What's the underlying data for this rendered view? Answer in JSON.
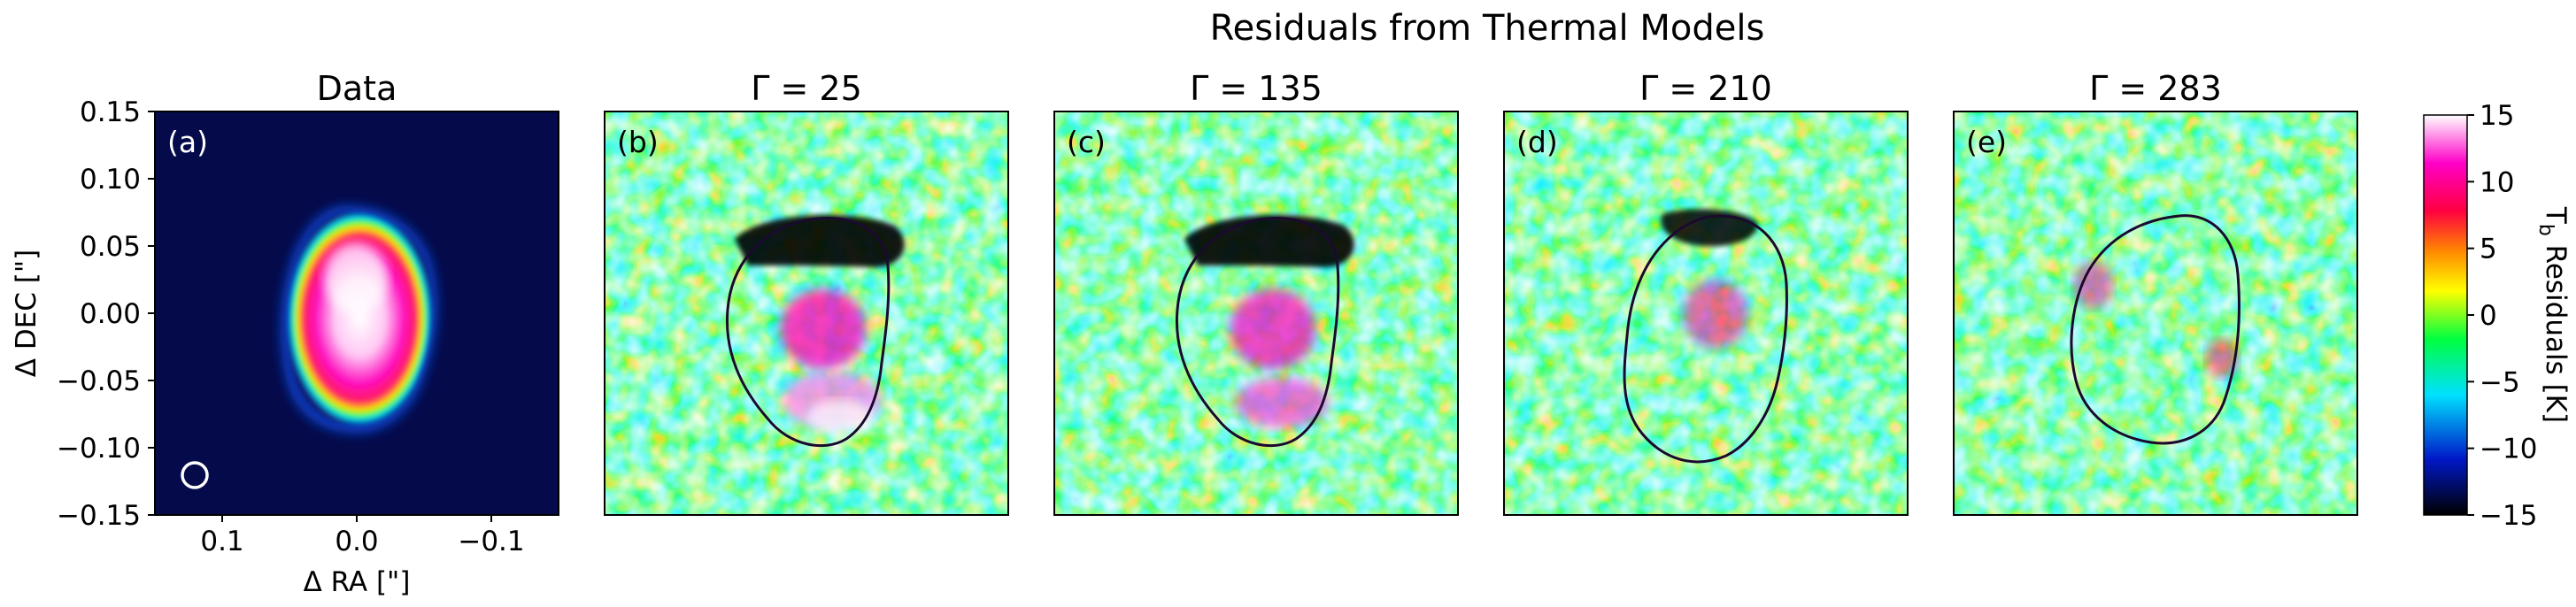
{
  "figure": {
    "suptitle": "Residuals from Thermal Models"
  },
  "panels": [
    {
      "title": "Data",
      "label": "(a)"
    },
    {
      "title": "Γ = 25",
      "label": "(b)"
    },
    {
      "title": "Γ = 135",
      "label": "(c)"
    },
    {
      "title": "Γ = 210",
      "label": "(d)"
    },
    {
      "title": "Γ = 283",
      "label": "(e)"
    }
  ],
  "axes": {
    "xlabel": "Δ RA [\"]",
    "ylabel": "Δ DEC [\"]",
    "xticks": [
      "0.1",
      "0.0",
      "−0.1"
    ],
    "yticks": [
      "0.15",
      "0.10",
      "0.05",
      "0.00",
      "−0.05",
      "−0.10",
      "−0.15"
    ]
  },
  "colorbar": {
    "label": "T_b Residuals [K]",
    "label_main": "T",
    "label_sub": "b",
    "label_rest": " Residuals [K]",
    "ticks": [
      "15",
      "10",
      "5",
      "0",
      "−5",
      "−10",
      "−15"
    ],
    "colors": [
      "#000000",
      "#0018c8",
      "#00e0ff",
      "#00ff40",
      "#ffff00",
      "#ff8800",
      "#ff0040",
      "#ff00c8",
      "#ffffff"
    ]
  },
  "chart_data": [
    {
      "type": "heatmap",
      "title": "Data",
      "xlabel": "Δ RA [\"]",
      "ylabel": "Δ DEC [\"]",
      "xlim": [
        0.15,
        -0.15
      ],
      "ylim": [
        -0.15,
        0.15
      ],
      "xticks": [
        0.1,
        0.0,
        -0.1
      ],
      "yticks": [
        0.15,
        0.1,
        0.05,
        0.0,
        -0.05,
        -0.1,
        -0.15
      ],
      "notes": "Bright compact elongated source centered near (0.0, 0.0); beam ellipse shown at lower left."
    },
    {
      "type": "heatmap",
      "title": "Γ = 25",
      "colorbar_range": [
        -15,
        15
      ],
      "colorbar_label": "T_b Residuals [K]",
      "notes": "Strong negative residual (~ −15 K) at top of disk; positive residuals (~ +10 to +15 K) in center and lower part."
    },
    {
      "type": "heatmap",
      "title": "Γ = 135",
      "colorbar_range": [
        -15,
        15
      ],
      "notes": "Negative residual at top of disk; positive residuals center and bottom."
    },
    {
      "type": "heatmap",
      "title": "Γ = 210",
      "colorbar_range": [
        -15,
        15
      ],
      "notes": "Weaker negative residual at top; moderate positive residuals."
    },
    {
      "type": "heatmap",
      "title": "Γ = 283",
      "colorbar_range": [
        -15,
        15
      ],
      "notes": "Mostly near-zero residuals with scattered positive spots."
    }
  ]
}
